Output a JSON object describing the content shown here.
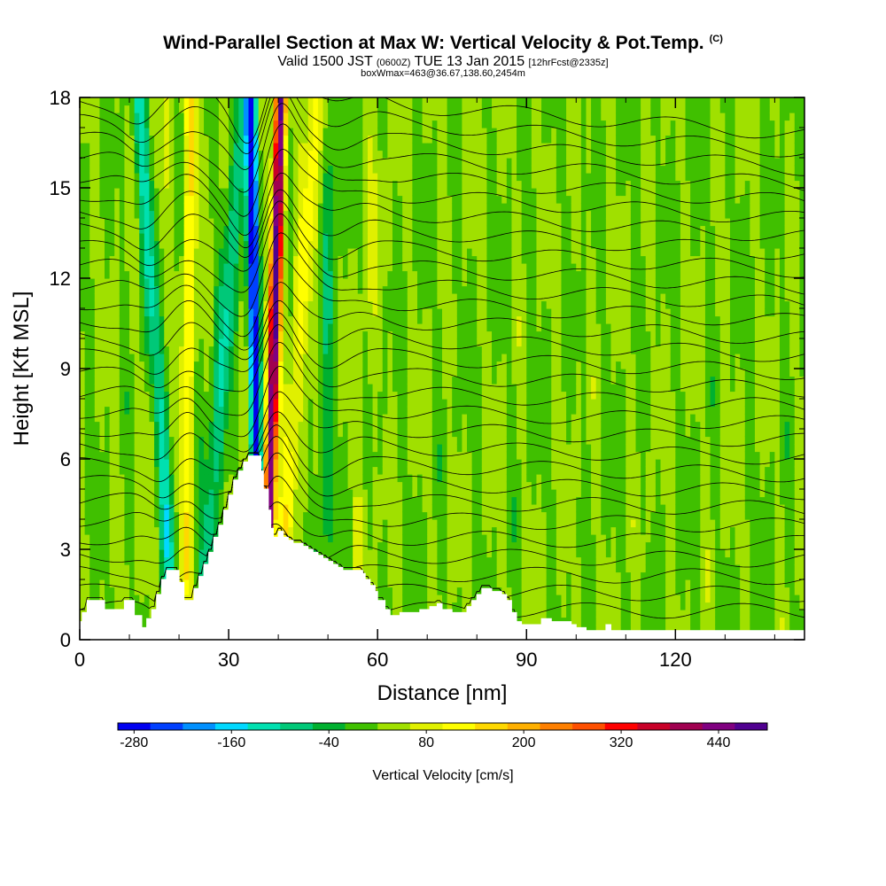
{
  "header": {
    "title": "Wind-Parallel Section at Max W: Vertical Velocity & Pot.Temp.",
    "copyright": "(C)",
    "valid_prefix": "Valid 1500 JST",
    "valid_utc": "(0600Z)",
    "valid_date": "TUE 13 Jan 2015",
    "forecast": "[12hrFcst@2335z]",
    "boxinfo": "boxWmax=463@36.67,138.60,2454m"
  },
  "chart_data": {
    "type": "heatmap",
    "xlabel": "Distance [nm]",
    "ylabel": "Height [Kft MSL]",
    "xlim": [
      0,
      146
    ],
    "ylim": [
      0,
      18
    ],
    "xticks": [
      0,
      30,
      60,
      90,
      120
    ],
    "yticks": [
      0,
      3,
      6,
      9,
      12,
      15,
      18
    ],
    "colorbar": {
      "title": "Vertical Velocity [cm/s]",
      "levels": [
        -280,
        -160,
        -40,
        80,
        200,
        320,
        440
      ],
      "colors": [
        "#0000f0",
        "#0040ff",
        "#0090ff",
        "#00d8ff",
        "#00e0b0",
        "#00c878",
        "#00b030",
        "#40c000",
        "#a0e000",
        "#e0f000",
        "#ffff00",
        "#ffd800",
        "#ffb000",
        "#ff8000",
        "#ff5000",
        "#ff0000",
        "#c80028",
        "#a00050",
        "#800080",
        "#500090"
      ],
      "range": [
        -300,
        500
      ]
    },
    "terrain": [
      [
        0,
        0.6
      ],
      [
        0.5,
        0.6
      ],
      [
        0.5,
        0.9
      ],
      [
        1.5,
        0.9
      ],
      [
        1.5,
        1.3
      ],
      [
        5,
        1.3
      ],
      [
        5,
        1.0
      ],
      [
        9,
        1.0
      ],
      [
        9,
        1.3
      ],
      [
        11,
        1.3
      ],
      [
        11,
        0.8
      ],
      [
        12.5,
        0.8
      ],
      [
        12.5,
        0.4
      ],
      [
        13.5,
        0.4
      ],
      [
        13.5,
        0.7
      ],
      [
        14.5,
        0.7
      ],
      [
        14.5,
        1.0
      ],
      [
        15.5,
        1.0
      ],
      [
        15.5,
        1.5
      ],
      [
        16.5,
        1.5
      ],
      [
        16.5,
        2.0
      ],
      [
        17.5,
        2.0
      ],
      [
        17.5,
        2.3
      ],
      [
        20,
        2.3
      ],
      [
        20,
        1.9
      ],
      [
        21,
        1.9
      ],
      [
        21,
        1.3
      ],
      [
        23,
        1.3
      ],
      [
        23,
        1.7
      ],
      [
        24,
        1.7
      ],
      [
        24,
        2.1
      ],
      [
        25,
        2.1
      ],
      [
        25,
        2.5
      ],
      [
        26,
        2.5
      ],
      [
        26,
        2.9
      ],
      [
        27,
        2.9
      ],
      [
        27,
        3.4
      ],
      [
        28,
        3.4
      ],
      [
        28,
        3.8
      ],
      [
        29,
        3.8
      ],
      [
        29,
        4.3
      ],
      [
        30,
        4.3
      ],
      [
        30,
        4.8
      ],
      [
        31,
        4.8
      ],
      [
        31,
        5.3
      ],
      [
        32,
        5.3
      ],
      [
        32,
        5.6
      ],
      [
        33,
        5.6
      ],
      [
        33,
        5.9
      ],
      [
        34,
        5.9
      ],
      [
        34,
        6.1
      ],
      [
        36.5,
        6.1
      ],
      [
        36.5,
        5.6
      ],
      [
        37,
        5.6
      ],
      [
        37,
        5.0
      ],
      [
        38,
        5.0
      ],
      [
        38,
        4.3
      ],
      [
        38.5,
        4.3
      ],
      [
        38.5,
        3.7
      ],
      [
        39,
        3.7
      ],
      [
        39,
        3.4
      ],
      [
        40,
        3.4
      ],
      [
        40,
        3.6
      ],
      [
        41,
        3.6
      ],
      [
        41,
        3.4
      ],
      [
        42,
        3.4
      ],
      [
        42,
        3.3
      ],
      [
        43,
        3.3
      ],
      [
        43,
        3.2
      ],
      [
        45,
        3.2
      ],
      [
        45,
        3.1
      ],
      [
        46,
        3.1
      ],
      [
        46,
        3.0
      ],
      [
        47,
        3.0
      ],
      [
        47,
        2.9
      ],
      [
        48,
        2.9
      ],
      [
        48,
        2.8
      ],
      [
        49,
        2.8
      ],
      [
        49,
        2.7
      ],
      [
        50,
        2.7
      ],
      [
        50,
        2.6
      ],
      [
        51,
        2.6
      ],
      [
        51,
        2.5
      ],
      [
        52,
        2.5
      ],
      [
        52,
        2.4
      ],
      [
        53,
        2.4
      ],
      [
        53,
        2.3
      ],
      [
        57,
        2.3
      ],
      [
        57,
        2.2
      ],
      [
        57.5,
        2.2
      ],
      [
        57.5,
        2.0
      ],
      [
        58.5,
        2.0
      ],
      [
        58.5,
        1.8
      ],
      [
        59.5,
        1.8
      ],
      [
        59.5,
        1.6
      ],
      [
        60,
        1.6
      ],
      [
        60,
        1.3
      ],
      [
        61.5,
        1.3
      ],
      [
        61.5,
        1.0
      ],
      [
        62.5,
        1.0
      ],
      [
        62.5,
        0.8
      ],
      [
        64.5,
        0.8
      ],
      [
        64.5,
        0.9
      ],
      [
        68.5,
        0.9
      ],
      [
        68.5,
        1.0
      ],
      [
        70.5,
        1.0
      ],
      [
        70.5,
        1.1
      ],
      [
        72,
        1.1
      ],
      [
        72,
        1.2
      ],
      [
        73,
        1.2
      ],
      [
        73,
        1.0
      ],
      [
        75,
        1.0
      ],
      [
        75,
        0.9
      ],
      [
        78,
        0.9
      ],
      [
        78,
        1.1
      ],
      [
        79,
        1.1
      ],
      [
        79,
        1.3
      ],
      [
        80,
        1.3
      ],
      [
        80,
        1.5
      ],
      [
        81,
        1.5
      ],
      [
        81,
        1.7
      ],
      [
        83,
        1.7
      ],
      [
        83,
        1.6
      ],
      [
        85,
        1.6
      ],
      [
        85,
        1.5
      ],
      [
        86,
        1.5
      ],
      [
        86,
        1.3
      ],
      [
        87,
        1.3
      ],
      [
        87,
        0.9
      ],
      [
        88,
        0.9
      ],
      [
        88,
        0.6
      ],
      [
        89,
        0.6
      ],
      [
        89,
        0.5
      ],
      [
        93,
        0.5
      ],
      [
        93,
        0.7
      ],
      [
        95,
        0.7
      ],
      [
        95,
        0.6
      ],
      [
        99,
        0.6
      ],
      [
        99,
        0.5
      ],
      [
        100,
        0.5
      ],
      [
        100,
        0.4
      ],
      [
        102,
        0.4
      ],
      [
        102,
        0.3
      ],
      [
        103,
        0.3
      ],
      [
        103,
        0.3
      ],
      [
        106,
        0.3
      ],
      [
        106,
        0.5
      ],
      [
        107,
        0.5
      ],
      [
        107,
        0.3
      ],
      [
        146,
        0.3
      ]
    ],
    "updrafts": [
      {
        "x0": 21.0,
        "x1": 22.5,
        "lean": 8.0,
        "peak": 120,
        "sigma": 0.9
      },
      {
        "x0": 37.5,
        "x1": 40.5,
        "lean": 3.0,
        "peak": 463,
        "sigma": 0.8
      },
      {
        "x0": 39.5,
        "x1": 48.0,
        "lean": 5.0,
        "peak": 90,
        "sigma": 1.4
      },
      {
        "x0": 12.0,
        "x1": 18.0,
        "lean": 6.0,
        "peak": 25,
        "sigma": 1.2
      },
      {
        "x0": 55.0,
        "x1": 60.0,
        "lean": 5.0,
        "peak": 25,
        "sigma": 1.5
      }
    ],
    "downdrafts": [
      {
        "x0": 36.0,
        "x1": 34.5,
        "lean": -1.5,
        "peak": -290,
        "sigma": 0.8
      },
      {
        "x0": 24.5,
        "x1": 33.0,
        "lean": 8.0,
        "peak": -110,
        "sigma": 1.3
      },
      {
        "x0": 19.0,
        "x1": 12.0,
        "lean": -7.0,
        "peak": -130,
        "sigma": 1.1
      },
      {
        "x0": 48.5,
        "x1": 51.0,
        "lean": 2.5,
        "peak": -60,
        "sigma": 1.2
      }
    ],
    "isentropes": {
      "levels_kft": [
        1.0,
        1.6,
        2.2,
        2.8,
        3.4,
        4.0,
        4.6,
        5.2,
        5.8,
        6.4,
        7.0,
        7.6,
        8.2,
        8.8,
        9.4,
        10.0,
        10.6,
        11.2,
        11.8,
        12.4,
        13.0,
        13.6,
        14.2,
        14.8,
        15.4,
        16.0,
        16.6,
        17.2,
        17.8
      ]
    }
  }
}
